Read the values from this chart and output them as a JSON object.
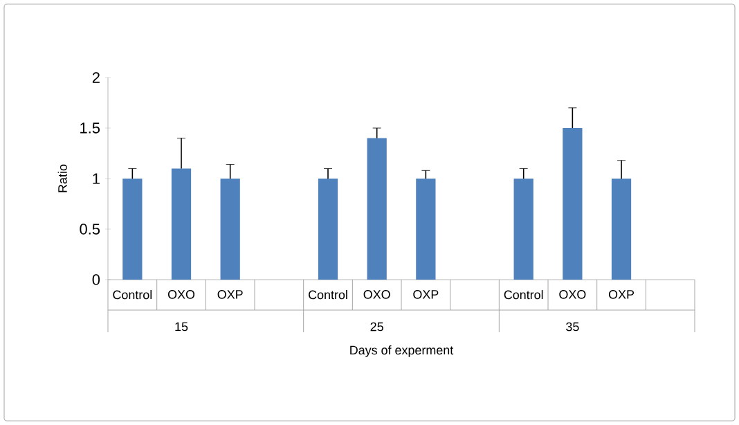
{
  "chart_data": {
    "type": "bar",
    "xlabel": "Days of experment",
    "ylabel": "Ratio",
    "categories": [
      "Control",
      "OXO",
      "OXP",
      null,
      "Control",
      "OXO",
      "OXP",
      null,
      "Control",
      "OXO",
      "OXP",
      null
    ],
    "values": [
      1,
      1.1,
      1,
      null,
      1,
      1.4,
      1,
      null,
      1,
      1.5,
      1,
      null
    ],
    "errors": [
      [
        1,
        1.1
      ],
      [
        1.1,
        1.4
      ],
      [
        1,
        1.14
      ],
      null,
      [
        1,
        1.1
      ],
      [
        1.4,
        1.5
      ],
      [
        1,
        1.08
      ],
      null,
      [
        1,
        1.1
      ],
      [
        1.5,
        1.7
      ],
      [
        1,
        1.18
      ],
      null
    ],
    "color": "#4f81bd",
    "ylim": [
      0,
      2
    ],
    "yticks": [
      0,
      0.5,
      1,
      1.5,
      2
    ],
    "grid": false,
    "annotations": [
      "15",
      "25",
      "35"
    ]
  }
}
